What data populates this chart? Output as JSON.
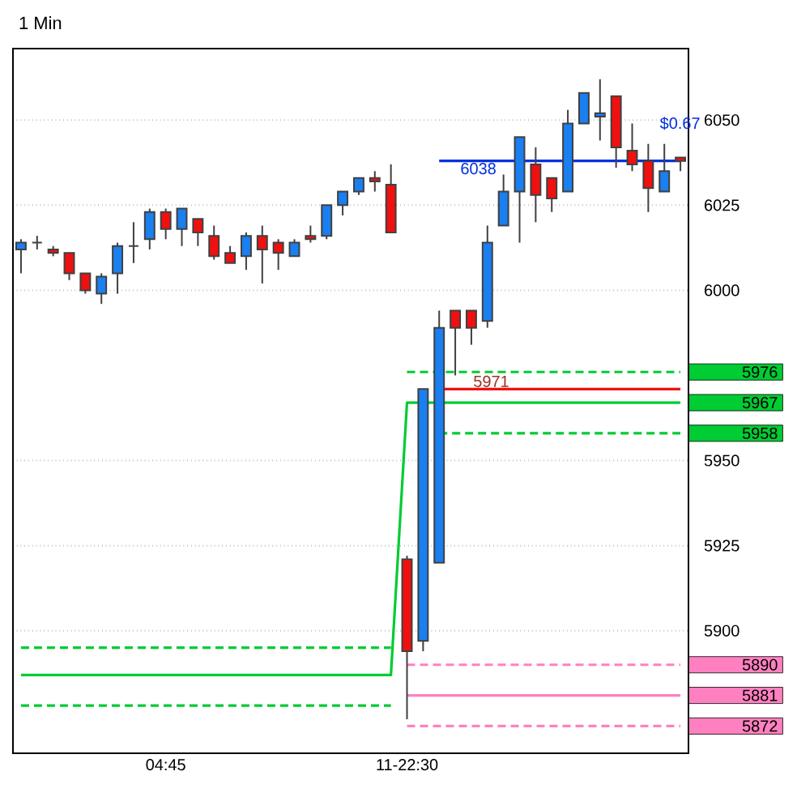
{
  "chart_data": {
    "type": "candlestick",
    "title": "1 Min",
    "categories": [
      null,
      null,
      null,
      null,
      null,
      null,
      null,
      null,
      null,
      "04:45",
      null,
      null,
      null,
      null,
      null,
      null,
      null,
      null,
      null,
      null,
      null,
      null,
      null,
      null,
      "11-22:30",
      null,
      null,
      null,
      null,
      null,
      null,
      null,
      null,
      null,
      null,
      null,
      null,
      null,
      null,
      null,
      null,
      null
    ],
    "ohlc": [
      [
        6012,
        6015,
        6005,
        6014
      ],
      [
        6014,
        6016,
        6012,
        6014
      ],
      [
        6012,
        6013,
        6010,
        6011
      ],
      [
        6011,
        6011,
        6003,
        6005
      ],
      [
        6005,
        6005,
        5999,
        6000
      ],
      [
        5999,
        6005,
        5996,
        6004
      ],
      [
        6005,
        6014,
        5999,
        6013
      ],
      [
        6013,
        6020,
        6008,
        6013
      ],
      [
        6015,
        6024,
        6012,
        6023
      ],
      [
        6023,
        6024,
        6015,
        6018
      ],
      [
        6018,
        6024,
        6013,
        6024
      ],
      [
        6021,
        6021,
        6013,
        6017
      ],
      [
        6016,
        6019,
        6009,
        6010
      ],
      [
        6011,
        6013,
        6008,
        6008
      ],
      [
        6010,
        6017,
        6006,
        6016
      ],
      [
        6016,
        6019,
        6002,
        6012
      ],
      [
        6014,
        6015,
        6006,
        6011
      ],
      [
        6010,
        6015,
        6010,
        6014
      ],
      [
        6016,
        6019,
        6014,
        6015
      ],
      [
        6016,
        6025,
        6015,
        6025
      ],
      [
        6025,
        6029,
        6022,
        6029
      ],
      [
        6029,
        6033,
        6028,
        6033
      ],
      [
        6033,
        6035,
        6029,
        6032
      ],
      [
        6031,
        6037,
        6017,
        6017
      ],
      [
        5921,
        5922,
        5874,
        5894
      ],
      [
        5897,
        5971,
        5894,
        5971
      ],
      [
        5920,
        5994,
        5920,
        5989
      ],
      [
        5994,
        5994,
        5975,
        5989
      ],
      [
        5994,
        5994,
        5984,
        5989
      ],
      [
        5991,
        6019,
        5989,
        6014
      ],
      [
        6019,
        6034,
        6019,
        6029
      ],
      [
        6029,
        6045,
        6014,
        6045
      ],
      [
        6037,
        6042,
        6020,
        6028
      ],
      [
        6033,
        6033,
        6023,
        6027
      ],
      [
        6029,
        6053,
        6029,
        6049
      ],
      [
        6049,
        6058,
        6049,
        6058
      ],
      [
        6051,
        6062,
        6044,
        6052
      ],
      [
        6057,
        6057,
        6036,
        6042
      ],
      [
        6041,
        6049,
        6035,
        6037
      ],
      [
        6038,
        6043,
        6023,
        6030
      ],
      [
        6029,
        6043,
        6029,
        6035
      ],
      [
        6039,
        6039,
        6035,
        6038
      ]
    ],
    "colors": [
      "#1a7ff0",
      "#404040",
      "#f01010",
      "#f01010",
      "#f01010",
      "#1a7ff0",
      "#1a7ff0",
      "#404040",
      "#1a7ff0",
      "#f01010",
      "#1a7ff0",
      "#f01010",
      "#f01010",
      "#f01010",
      "#1a7ff0",
      "#f01010",
      "#f01010",
      "#1a7ff0",
      "#f01010",
      "#1a7ff0",
      "#1a7ff0",
      "#1a7ff0",
      "#f01010",
      "#f01010",
      "#f01010",
      "#1a7ff0",
      "#1a7ff0",
      "#f01010",
      "#f01010",
      "#1a7ff0",
      "#1a7ff0",
      "#1a7ff0",
      "#f01010",
      "#f01010",
      "#1a7ff0",
      "#1a7ff0",
      "#1a7ff0",
      "#f01010",
      "#f01010",
      "#f01010",
      "#1a7ff0",
      "#f01010"
    ],
    "series": [
      {
        "type": "line",
        "line_style": "dashed",
        "color": "#00cc33",
        "values": [
          5895,
          5895,
          5895,
          5895,
          5895,
          5895,
          5895,
          5895,
          5895,
          5895,
          5895,
          5895,
          5895,
          5895,
          5895,
          5895,
          5895,
          5895,
          5895,
          5895,
          5895,
          5895,
          5895,
          5895,
          null,
          null,
          null,
          null,
          null,
          null,
          null,
          null,
          null,
          null,
          null,
          null,
          null,
          null,
          null,
          null,
          null,
          null
        ]
      },
      {
        "type": "line",
        "line_style": "solid",
        "color": "#00cc33",
        "name": "5967",
        "values": [
          5887,
          5887,
          5887,
          5887,
          5887,
          5887,
          5887,
          5887,
          5887,
          5887,
          5887,
          5887,
          5887,
          5887,
          5887,
          5887,
          5887,
          5887,
          5887,
          5887,
          5887,
          5887,
          5887,
          5887,
          5967,
          5967,
          5967,
          5967,
          5967,
          5967,
          5967,
          5967,
          5967,
          5967,
          5967,
          5967,
          5967,
          5967,
          5967,
          5967,
          5967,
          5967
        ]
      },
      {
        "type": "line",
        "line_style": "dashed",
        "color": "#00cc33",
        "values": [
          5878,
          5878,
          5878,
          5878,
          5878,
          5878,
          5878,
          5878,
          5878,
          5878,
          5878,
          5878,
          5878,
          5878,
          5878,
          5878,
          5878,
          5878,
          5878,
          5878,
          5878,
          5878,
          5878,
          5878,
          null,
          null,
          null,
          null,
          null,
          null,
          null,
          null,
          null,
          null,
          null,
          null,
          null,
          null,
          null,
          null,
          null,
          null
        ]
      },
      {
        "type": "line",
        "line_style": "dashed",
        "color": "#00cc33",
        "name": "5976",
        "values": [
          null,
          null,
          null,
          null,
          null,
          null,
          null,
          null,
          null,
          null,
          null,
          null,
          null,
          null,
          null,
          null,
          null,
          null,
          null,
          null,
          null,
          null,
          null,
          null,
          5976,
          5976,
          5976,
          5976,
          5976,
          5976,
          5976,
          5976,
          5976,
          5976,
          5976,
          5976,
          5976,
          5976,
          5976,
          5976,
          5976,
          5976
        ]
      },
      {
        "type": "line",
        "line_style": "dashed",
        "color": "#00cc33",
        "name": "5958",
        "values": [
          null,
          null,
          null,
          null,
          null,
          null,
          null,
          null,
          null,
          null,
          null,
          null,
          null,
          null,
          null,
          null,
          null,
          null,
          null,
          null,
          null,
          null,
          null,
          null,
          null,
          null,
          5958,
          5958,
          5958,
          5958,
          5958,
          5958,
          5958,
          5958,
          5958,
          5958,
          5958,
          5958,
          5958,
          5958,
          5958,
          5958
        ]
      },
      {
        "type": "line",
        "line_style": "dashed",
        "color": "#ff80c0",
        "name": "5890",
        "values": [
          null,
          null,
          null,
          null,
          null,
          null,
          null,
          null,
          null,
          null,
          null,
          null,
          null,
          null,
          null,
          null,
          null,
          null,
          null,
          null,
          null,
          null,
          null,
          null,
          5890,
          5890,
          5890,
          5890,
          5890,
          5890,
          5890,
          5890,
          5890,
          5890,
          5890,
          5890,
          5890,
          5890,
          5890,
          5890,
          5890,
          5890
        ]
      },
      {
        "type": "line",
        "line_style": "solid",
        "color": "#ff80c0",
        "name": "5881",
        "values": [
          null,
          null,
          null,
          null,
          null,
          null,
          null,
          null,
          null,
          null,
          null,
          null,
          null,
          null,
          null,
          null,
          null,
          null,
          null,
          null,
          null,
          null,
          null,
          null,
          5881,
          5881,
          5881,
          5881,
          5881,
          5881,
          5881,
          5881,
          5881,
          5881,
          5881,
          5881,
          5881,
          5881,
          5881,
          5881,
          5881,
          5881
        ]
      },
      {
        "type": "line",
        "line_style": "dashed",
        "color": "#ff80c0",
        "name": "5872",
        "values": [
          null,
          null,
          null,
          null,
          null,
          null,
          null,
          null,
          null,
          null,
          null,
          null,
          null,
          null,
          null,
          null,
          null,
          null,
          null,
          null,
          null,
          null,
          null,
          null,
          5872,
          5872,
          5872,
          5872,
          5872,
          5872,
          5872,
          5872,
          5872,
          5872,
          5872,
          5872,
          5872,
          5872,
          5872,
          5872,
          5872,
          5872
        ]
      },
      {
        "type": "line",
        "line_style": "solid",
        "color": "#0030e0",
        "values": [
          null,
          null,
          null,
          null,
          null,
          null,
          null,
          null,
          null,
          null,
          null,
          null,
          null,
          null,
          null,
          null,
          null,
          null,
          null,
          null,
          null,
          null,
          null,
          null,
          null,
          null,
          6038,
          6038,
          6038,
          6038,
          6038,
          6038,
          6038,
          6038,
          6038,
          6038,
          6038,
          6038,
          6038,
          6038,
          6038,
          6038
        ]
      },
      {
        "type": "line",
        "line_style": "solid",
        "color": "#f01010",
        "values": [
          null,
          null,
          null,
          null,
          null,
          null,
          null,
          null,
          null,
          null,
          null,
          null,
          null,
          null,
          null,
          null,
          null,
          null,
          null,
          null,
          null,
          null,
          null,
          null,
          null,
          null,
          5971,
          5971,
          5971,
          5971,
          5971,
          5971,
          5971,
          5971,
          5971,
          5971,
          5971,
          5971,
          5971,
          5971,
          5971,
          5971
        ]
      }
    ],
    "annotations": [
      {
        "text": "6038",
        "y": 6038
      },
      {
        "text": "5971",
        "y": 5971
      },
      {
        "text": "$0.67",
        "y": 6038
      }
    ],
    "ylim": [
      5864,
      6071
    ],
    "yticks": [
      6050,
      6025,
      6000,
      5950,
      5925,
      5900
    ],
    "grid": "y"
  }
}
